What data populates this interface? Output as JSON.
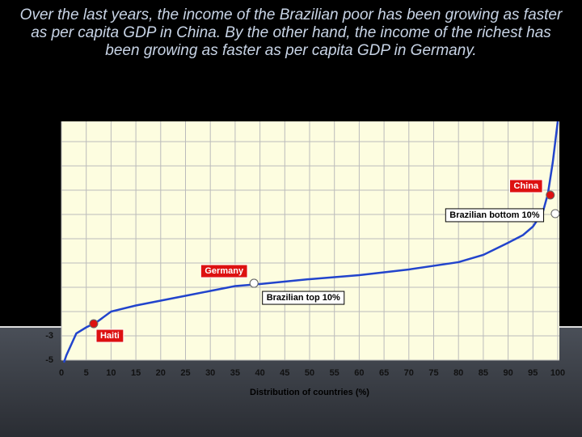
{
  "chart_data": {
    "type": "line",
    "title": "Over the last years, the income of the Brazilian poor has been growing as faster as per capita GDP in China. By the other hand, the income of the richest has been growing as faster as per capita GDP in Germany.",
    "x_label": "Distribution of countries (%)",
    "x": [
      0.5,
      1,
      3,
      5,
      7,
      10,
      15,
      20,
      25,
      30,
      35,
      40,
      50,
      60,
      70,
      80,
      85,
      90,
      93,
      95,
      97,
      98,
      99,
      100
    ],
    "series": [
      {
        "color": "#2244cc",
        "values": [
          -5.2,
          -4.6,
          -2.8,
          -2.3,
          -1.9,
          -1.0,
          -0.5,
          -0.1,
          0.3,
          0.7,
          1.1,
          1.27,
          1.67,
          2.0,
          2.47,
          3.07,
          3.67,
          4.67,
          5.3,
          6.0,
          7.2,
          8.67,
          11.3,
          14.67
        ]
      }
    ],
    "xlim": [
      0,
      100
    ],
    "xticks": [
      0,
      5,
      10,
      15,
      20,
      25,
      30,
      35,
      40,
      45,
      50,
      55,
      60,
      65,
      70,
      75,
      80,
      85,
      90,
      95,
      100
    ],
    "ylim": [
      -5,
      15
    ],
    "yticks": [
      -5,
      -3
    ],
    "ygrid": [
      -1,
      1,
      3,
      5,
      7,
      9,
      11,
      13
    ],
    "grid": true,
    "annotations": [
      {
        "label": "Haiti",
        "x": 6.5,
        "y": -2.0,
        "color": "#dd1111"
      },
      {
        "label": "Germany",
        "x": 38.8,
        "y": 1.33,
        "color": "#dd1111"
      },
      {
        "label": "China",
        "x": 98.5,
        "y": 8.6,
        "color": "#dd1111"
      },
      {
        "label": "Brazilian bottom 10%",
        "x": 99.5,
        "y": 7.07,
        "color": "#ffffff"
      },
      {
        "label": "Brazilian top 10%",
        "x": 38.8,
        "y": 1.33,
        "color": "#ffffff"
      }
    ]
  }
}
